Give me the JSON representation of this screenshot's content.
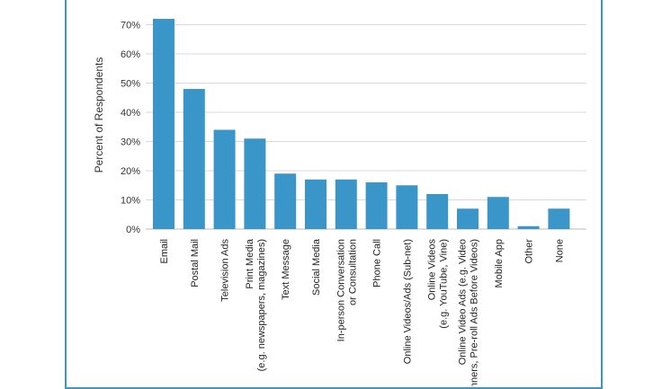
{
  "chart_data": {
    "type": "bar",
    "title": "",
    "xlabel": "",
    "ylabel": "Percent of Respondents",
    "ylim": [
      0,
      70
    ],
    "yticks": [
      "0%",
      "10%",
      "20%",
      "30%",
      "40%",
      "50%",
      "60%",
      "70%"
    ],
    "grid": true,
    "bar_color": "#3a95c9",
    "categories": [
      [
        "Email"
      ],
      [
        "Postal Mail"
      ],
      [
        "Television Ads"
      ],
      [
        "Print Media",
        "(e.g. newspapers, magazines)"
      ],
      [
        "Text Message"
      ],
      [
        "Social Media"
      ],
      [
        "In-person Conversation",
        "or Consultation"
      ],
      [
        "Phone Call"
      ],
      [
        "Online Videos/Ads (Sub-net)"
      ],
      [
        "Online Videos",
        "(e.g. YouTube, Vine)"
      ],
      [
        "Online Video Ads (e.g. Video",
        "Banners, Pre-roll Ads Before Videos)"
      ],
      [
        "Mobile App"
      ],
      [
        "Other"
      ],
      [
        "None"
      ]
    ],
    "values": [
      72,
      48,
      34,
      31,
      19,
      17,
      17,
      16,
      15,
      12,
      7,
      11,
      1,
      7
    ]
  }
}
